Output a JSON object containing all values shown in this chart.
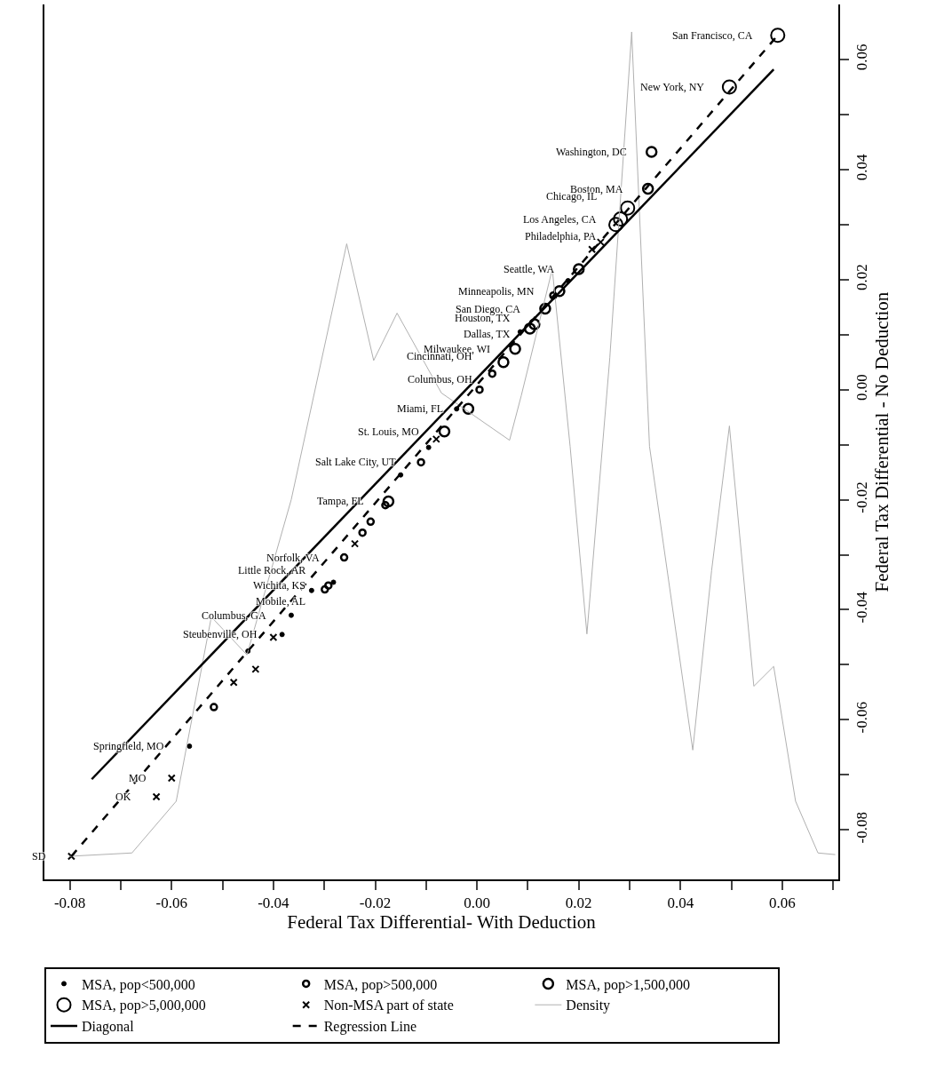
{
  "chart_data": {
    "type": "scatter",
    "xlabel": "Federal Tax Differential- With Deduction",
    "ylabel": "Federal Tax Differential - No Deduction",
    "xlim": [
      -0.085,
      0.071
    ],
    "ylim": [
      -0.089,
      0.07
    ],
    "xticks": [
      {
        "value": -0.08,
        "label": "-0.08"
      },
      {
        "value": -0.07,
        "label": null
      },
      {
        "value": -0.06,
        "label": "-0.06"
      },
      {
        "value": -0.05,
        "label": null
      },
      {
        "value": -0.04,
        "label": "-0.04"
      },
      {
        "value": -0.03,
        "label": null
      },
      {
        "value": -0.02,
        "label": "-0.02"
      },
      {
        "value": -0.01,
        "label": null
      },
      {
        "value": 0,
        "label": "0.00"
      },
      {
        "value": 0.01,
        "label": null
      },
      {
        "value": 0.02,
        "label": "0.02"
      },
      {
        "value": 0.03,
        "label": null
      },
      {
        "value": 0.04,
        "label": "0.04"
      },
      {
        "value": 0.05,
        "label": null
      },
      {
        "value": 0.06,
        "label": "0.06"
      },
      {
        "value": 0.07,
        "label": null
      }
    ],
    "yticks": [
      {
        "value": -0.08,
        "label": "-0.08"
      },
      {
        "value": -0.07,
        "label": null
      },
      {
        "value": -0.06,
        "label": "-0.06"
      },
      {
        "value": -0.05,
        "label": null
      },
      {
        "value": -0.04,
        "label": "-0.04"
      },
      {
        "value": -0.03,
        "label": null
      },
      {
        "value": -0.02,
        "label": "-0.02"
      },
      {
        "value": -0.01,
        "label": null
      },
      {
        "value": 0,
        "label": "0.00"
      },
      {
        "value": 0.01,
        "label": null
      },
      {
        "value": 0.02,
        "label": "0.02"
      },
      {
        "value": 0.03,
        "label": null
      },
      {
        "value": 0.04,
        "label": "0.04"
      },
      {
        "value": 0.05,
        "label": null
      },
      {
        "value": 0.06,
        "label": "0.06"
      }
    ],
    "grid": false,
    "legend": "bottom",
    "series": [
      {
        "name": "MSA, pop<500,000",
        "marker": "circle",
        "color": "#000000",
        "x": [
          0.0179,
          -0.0365,
          -0.0383,
          -0.0565,
          -0.0282,
          -0.0095,
          -0.045,
          -0.0325,
          -0.015,
          -0.004,
          0.0085
        ],
        "values": [
          0.0198,
          -0.041,
          -0.0445,
          -0.0648,
          -0.035,
          -0.0105,
          -0.0475,
          -0.0365,
          -0.0155,
          -0.0035,
          0.0105
        ]
      },
      {
        "name": "MSA, pop>500,000",
        "marker": "circle",
        "color": "#000000",
        "x": [
          0.015,
          0.003,
          0.0005,
          -0.011,
          -0.0209,
          -0.0261,
          -0.0292,
          -0.0299,
          -0.0517,
          -0.0225,
          -0.018
        ],
        "values": [
          0.0171,
          0.0029,
          0.0,
          -0.0132,
          -0.024,
          -0.0305,
          -0.0356,
          -0.0363,
          -0.0577,
          -0.026,
          -0.021
        ]
      },
      {
        "name": "MSA, pop>1,500,000",
        "marker": "circle",
        "color": "#000000",
        "x": [
          0.0343,
          0.0336,
          0.02,
          0.0162,
          0.0134,
          0.0113,
          0.0104,
          0.0075,
          0.0052,
          -0.0017,
          -0.0064,
          -0.0174
        ],
        "values": [
          0.0432,
          0.0365,
          0.0219,
          0.0179,
          0.0147,
          0.0119,
          0.0111,
          0.0074,
          0.005,
          -0.0035,
          -0.0076,
          -0.0203
        ]
      },
      {
        "name": "MSA, pop>5,000,000",
        "marker": "circle",
        "color": "#000000",
        "x": [
          0.0591,
          0.0496,
          0.0296,
          0.0282,
          0.0273
        ],
        "values": [
          0.0644,
          0.055,
          0.033,
          0.031,
          0.03
        ]
      },
      {
        "name": "Non-MSA part of state",
        "marker": "cross",
        "color": "#000000",
        "x": [
          0.0243,
          0.0226,
          -0.0435,
          -0.0478,
          -0.06,
          -0.063,
          -0.0797,
          -0.04,
          -0.024,
          -0.008
        ],
        "values": [
          0.0268,
          0.0255,
          -0.0508,
          -0.0532,
          -0.0706,
          -0.074,
          -0.0848,
          -0.045,
          -0.028,
          -0.009
        ]
      },
      {
        "name": "Density",
        "type": "line",
        "line_style": "solid",
        "color": "#b0b0b0",
        "x": [
          -0.08,
          -0.0678,
          -0.0591,
          -0.0522,
          -0.0452,
          -0.0365,
          -0.0256,
          -0.0203,
          -0.0157,
          -0.007,
          0.0064,
          0.0087,
          0.0148,
          0.0183,
          0.0216,
          0.0261,
          0.0304,
          0.0339,
          0.0424,
          0.0461,
          0.0496,
          0.0544,
          0.0583,
          0.0626,
          0.067,
          0.0704
        ],
        "values": [
          -0.0848,
          -0.0842,
          -0.0748,
          -0.0413,
          -0.0482,
          -0.02,
          0.0265,
          0.0053,
          0.0139,
          -0.0006,
          -0.0092,
          -0.0011,
          0.0219,
          -0.0103,
          -0.0444,
          0.0058,
          0.065,
          -0.0103,
          -0.0655,
          -0.0329,
          -0.0066,
          -0.0539,
          -0.0503,
          -0.0748,
          -0.0842,
          -0.0845
        ]
      },
      {
        "name": "Diagonal",
        "type": "line",
        "line_style": "solid",
        "color": "#000000",
        "x": [
          -0.0757,
          0.0583
        ],
        "values": [
          -0.0708,
          0.0582
        ]
      },
      {
        "name": "Regression Line",
        "type": "line",
        "line_style": "dashed",
        "color": "#000000",
        "x": [
          -0.0797,
          0.0591
        ],
        "values": [
          -0.0848,
          0.0644
        ]
      }
    ],
    "annotations": [
      {
        "text": "San Francisco, CA",
        "x": 0.0591,
        "y": 0.0644
      },
      {
        "text": "New York, NY",
        "x": 0.0496,
        "y": 0.055
      },
      {
        "text": "Washington, DC",
        "x": 0.0343,
        "y": 0.0432
      },
      {
        "text": "Boston, MA",
        "x": 0.0336,
        "y": 0.0365
      },
      {
        "text": "Chicago, IL",
        "x": 0.0296,
        "y": 0.033
      },
      {
        "text": "Los Angeles, CA",
        "x": 0.0282,
        "y": 0.031
      },
      {
        "text": "Philadelphia, PA",
        "x": 0.0273,
        "y": 0.03
      },
      {
        "text": "Seattle, WA",
        "x": 0.02,
        "y": 0.0219
      },
      {
        "text": "Minneapolis, MN",
        "x": 0.0162,
        "y": 0.0179
      },
      {
        "text": "San Diego, CA",
        "x": 0.0134,
        "y": 0.0147
      },
      {
        "text": "Houston, TX",
        "x": 0.0113,
        "y": 0.0119
      },
      {
        "text": "Dallas, TX",
        "x": 0.0104,
        "y": 0.0111
      },
      {
        "text": "Milwaukee, WI",
        "x": 0.0075,
        "y": 0.0074
      },
      {
        "text": "Cincinnati, OH",
        "x": 0.0052,
        "y": 0.005
      },
      {
        "text": "Columbus, OH",
        "x": 0.003,
        "y": 0.0029
      },
      {
        "text": "Miami, FL",
        "x": -0.0017,
        "y": -0.0035
      },
      {
        "text": "St. Louis, MO",
        "x": -0.0064,
        "y": -0.0076
      },
      {
        "text": "Salt Lake City, UT",
        "x": -0.011,
        "y": -0.0132
      },
      {
        "text": "Tampa, FL",
        "x": -0.0174,
        "y": -0.0203
      },
      {
        "text": "Norfolk, VA",
        "x": -0.0261,
        "y": -0.0305
      },
      {
        "text": "Little Rock, AR",
        "x": -0.0282,
        "y": -0.035
      },
      {
        "text": "Wichita, KS",
        "x": -0.0292,
        "y": -0.0356
      },
      {
        "text": "Mobile, AL",
        "x": -0.0299,
        "y": -0.0363
      },
      {
        "text": "Columbus, GA",
        "x": -0.0365,
        "y": -0.041
      },
      {
        "text": "Steubenville, OH",
        "x": -0.0383,
        "y": -0.0445
      },
      {
        "text": "Springfield, MO",
        "x": -0.0565,
        "y": -0.0648
      },
      {
        "text": "MO",
        "x": -0.06,
        "y": -0.0706
      },
      {
        "text": "OK",
        "x": -0.063,
        "y": -0.074
      },
      {
        "text": "SD",
        "x": -0.0797,
        "y": -0.0848
      }
    ]
  }
}
